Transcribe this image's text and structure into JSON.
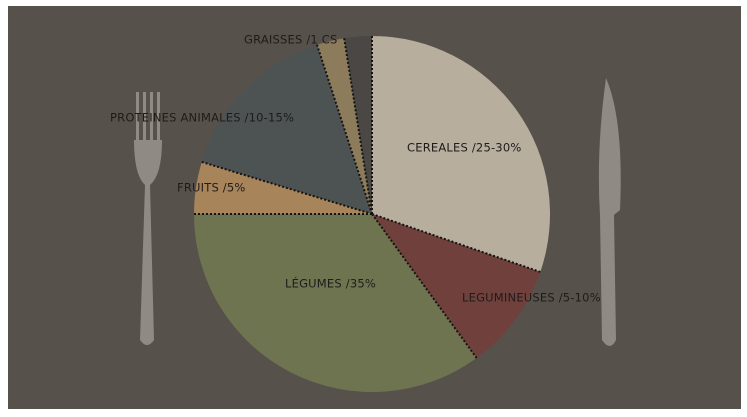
{
  "labels": {
    "graisses": "GRAISSES /1 CS",
    "proteines": "PROTEINES ANIMALES /10-15%",
    "fruits": "FRUITS /5%",
    "legumes": "LÉGUMES /35%",
    "cereales": "CEREALES /25-30%",
    "legumineuses": "LEGUMINEUSES /5-10%"
  }
}
